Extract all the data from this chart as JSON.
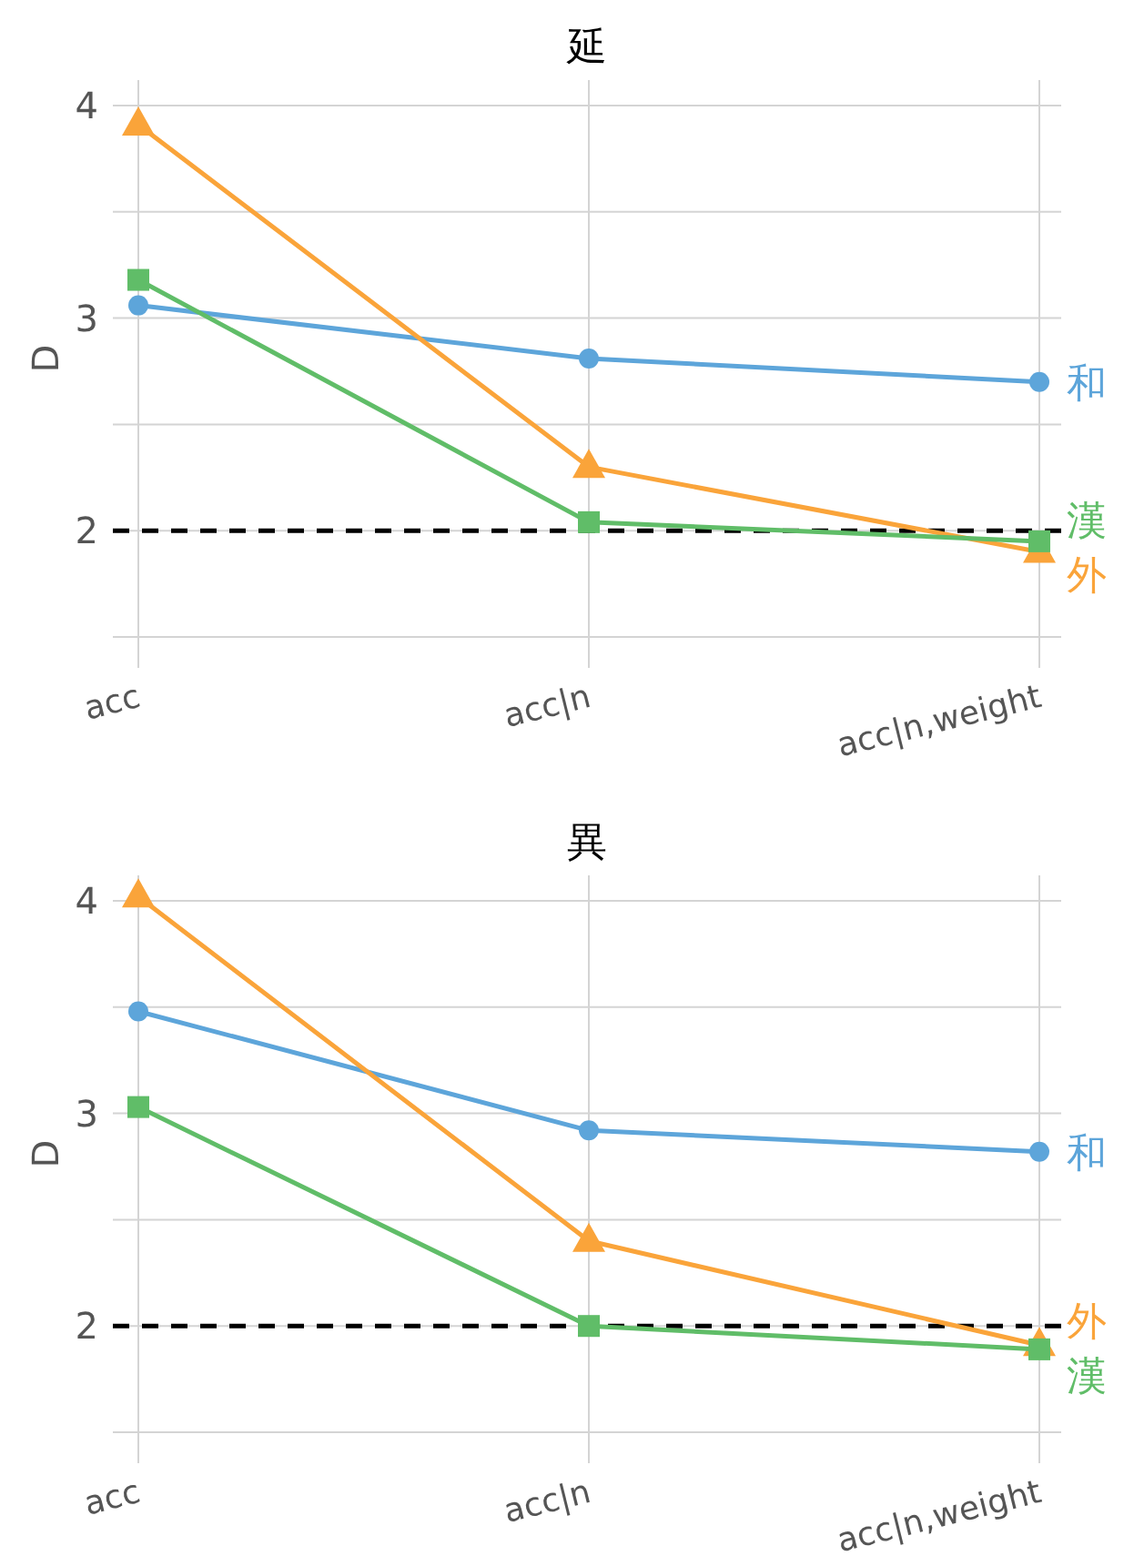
{
  "chart_data": [
    {
      "type": "line",
      "title": "延",
      "ylabel": "D",
      "categories": [
        "acc",
        "acc|n",
        "acc|n,weight"
      ],
      "ylim": [
        1.5,
        4.12
      ],
      "yticks": [
        {
          "value": 1.5,
          "label": null
        },
        2,
        {
          "value": 2.5,
          "label": null
        },
        3,
        {
          "value": 3.5,
          "label": null
        },
        4
      ],
      "grid": true,
      "legend": false,
      "ref_lines": [
        {
          "axis": "y",
          "value": 2,
          "color": "#000000",
          "line_style": "dashed"
        }
      ],
      "series": [
        {
          "name": "和",
          "color": "#5DA5DA",
          "marker": "circle",
          "values": [
            3.06,
            2.81,
            2.7
          ]
        },
        {
          "name": "外",
          "color": "#FAA43A",
          "marker": "triangle",
          "values": [
            3.91,
            2.3,
            1.9
          ]
        },
        {
          "name": "漢",
          "color": "#60BD68",
          "marker": "square",
          "values": [
            3.18,
            2.04,
            1.95
          ]
        }
      ]
    },
    {
      "type": "line",
      "title": "異",
      "ylabel": "D",
      "categories": [
        "acc",
        "acc|n",
        "acc|n,weight"
      ],
      "ylim": [
        1.5,
        4.12
      ],
      "yticks": [
        {
          "value": 1.5,
          "label": null
        },
        2,
        {
          "value": 2.5,
          "label": null
        },
        3,
        {
          "value": 3.5,
          "label": null
        },
        4
      ],
      "grid": true,
      "legend": false,
      "ref_lines": [
        {
          "axis": "y",
          "value": 2,
          "color": "#000000",
          "line_style": "dashed"
        }
      ],
      "series": [
        {
          "name": "和",
          "color": "#5DA5DA",
          "marker": "circle",
          "values": [
            3.48,
            2.92,
            2.82
          ]
        },
        {
          "name": "外",
          "color": "#FAA43A",
          "marker": "triangle",
          "values": [
            4.02,
            2.4,
            1.91
          ]
        },
        {
          "name": "漢",
          "color": "#60BD68",
          "marker": "square",
          "values": [
            3.03,
            2.0,
            1.89
          ]
        }
      ]
    }
  ]
}
